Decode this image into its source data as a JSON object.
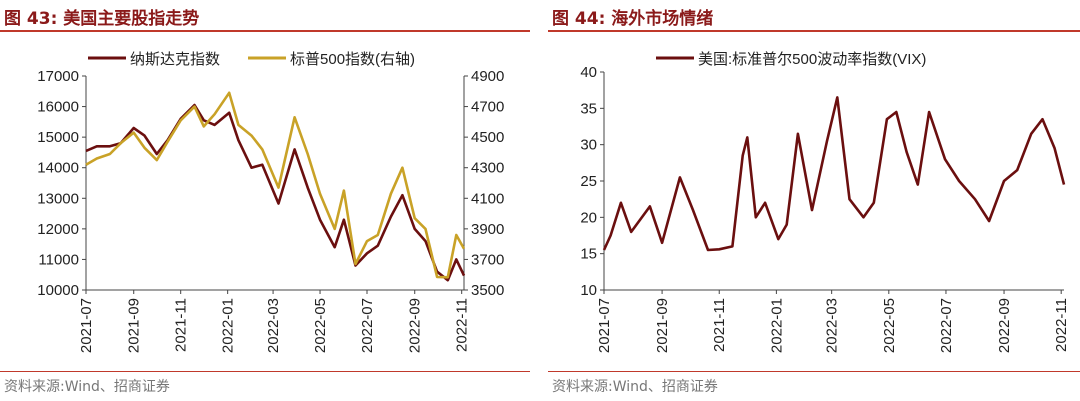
{
  "charts": [
    {
      "figure_title": "图 43:  美国主要股指走势",
      "source": "资料来源:Wind、招商证券",
      "chart_data": {
        "type": "line",
        "title": "",
        "x_ticks": [
          "2021-07",
          "2021-09",
          "2021-11",
          "2022-01",
          "2022-03",
          "2022-05",
          "2022-07",
          "2022-09",
          "2022-11"
        ],
        "x_range": [
          "2021-07-01",
          "2022-11-04"
        ],
        "y_left_ticks": [
          "10000",
          "11000",
          "12000",
          "13000",
          "14000",
          "15000",
          "16000",
          "17000"
        ],
        "y_left_range": [
          10000,
          17000
        ],
        "y_right_ticks": [
          "3500",
          "3700",
          "3900",
          "4100",
          "4300",
          "4500",
          "4700",
          "4900"
        ],
        "y_right_range": [
          3500,
          4900
        ],
        "legend_position": "top",
        "series": [
          {
            "name": "纳斯达克指数",
            "axis": "left",
            "color": "#6b0f0f",
            "x": [
              "2021-07-01",
              "2021-07-15",
              "2021-08-01",
              "2021-08-15",
              "2021-09-01",
              "2021-09-15",
              "2021-10-01",
              "2021-10-15",
              "2021-11-01",
              "2021-11-19",
              "2021-12-01",
              "2021-12-15",
              "2022-01-03",
              "2022-01-15",
              "2022-02-01",
              "2022-02-15",
              "2022-03-08",
              "2022-03-29",
              "2022-04-15",
              "2022-05-01",
              "2022-05-20",
              "2022-06-01",
              "2022-06-16",
              "2022-07-01",
              "2022-07-15",
              "2022-08-01",
              "2022-08-16",
              "2022-09-01",
              "2022-09-15",
              "2022-09-30",
              "2022-10-14",
              "2022-10-25",
              "2022-11-04"
            ],
            "y": [
              14550,
              14700,
              14700,
              14800,
              15300,
              15050,
              14450,
              14900,
              15600,
              16050,
              15550,
              15400,
              15800,
              14900,
              14000,
              14100,
              12830,
              14600,
              13350,
              12300,
              11400,
              12300,
              10800,
              11200,
              11450,
              12400,
              13100,
              12000,
              11600,
              10600,
              10320,
              11000,
              10470
            ]
          },
          {
            "name": "标普500指数(右轴)",
            "axis": "right",
            "color": "#c9a227",
            "x": [
              "2021-07-01",
              "2021-07-15",
              "2021-08-01",
              "2021-08-15",
              "2021-09-01",
              "2021-09-15",
              "2021-10-01",
              "2021-10-15",
              "2021-11-01",
              "2021-11-19",
              "2021-12-01",
              "2021-12-15",
              "2022-01-03",
              "2022-01-15",
              "2022-02-01",
              "2022-02-15",
              "2022-03-08",
              "2022-03-29",
              "2022-04-15",
              "2022-05-01",
              "2022-05-20",
              "2022-06-01",
              "2022-06-16",
              "2022-07-01",
              "2022-07-15",
              "2022-08-01",
              "2022-08-16",
              "2022-09-01",
              "2022-09-15",
              "2022-09-30",
              "2022-10-14",
              "2022-10-25",
              "2022-11-04"
            ],
            "y": [
              4320,
              4360,
              4390,
              4460,
              4530,
              4430,
              4350,
              4470,
              4610,
              4700,
              4570,
              4650,
              4790,
              4580,
              4510,
              4420,
              4170,
              4630,
              4390,
              4130,
              3900,
              4150,
              3670,
              3820,
              3860,
              4130,
              4300,
              3970,
              3900,
              3585,
              3583,
              3860,
              3770
            ]
          }
        ]
      }
    },
    {
      "figure_title": "图 44:  海外市场情绪",
      "source": "资料来源:Wind、招商证券",
      "chart_data": {
        "type": "line",
        "title": "",
        "x_ticks": [
          "2021-07",
          "2021-09",
          "2021-11",
          "2022-01",
          "2022-03",
          "2022-05",
          "2022-07",
          "2022-09",
          "2022-11"
        ],
        "x_range": [
          "2021-07-01",
          "2022-11-04"
        ],
        "y_left_ticks": [
          "10",
          "15",
          "20",
          "25",
          "30",
          "35",
          "40"
        ],
        "y_left_range": [
          10,
          40
        ],
        "legend_position": "top",
        "series": [
          {
            "name": "美国:标准普尔500波动率指数(VIX)",
            "axis": "left",
            "color": "#6b0f0f",
            "x": [
              "2021-07-01",
              "2021-07-08",
              "2021-07-19",
              "2021-07-30",
              "2021-08-19",
              "2021-09-01",
              "2021-09-20",
              "2021-10-04",
              "2021-10-20",
              "2021-11-01",
              "2021-11-15",
              "2021-11-26",
              "2021-12-01",
              "2021-12-10",
              "2021-12-20",
              "2022-01-03",
              "2022-01-12",
              "2022-01-24",
              "2022-02-08",
              "2022-02-24",
              "2022-03-07",
              "2022-03-20",
              "2022-04-04",
              "2022-04-15",
              "2022-04-29",
              "2022-05-09",
              "2022-05-20",
              "2022-06-01",
              "2022-06-13",
              "2022-06-30",
              "2022-07-15",
              "2022-08-01",
              "2022-08-16",
              "2022-09-01",
              "2022-09-15",
              "2022-09-30",
              "2022-10-12",
              "2022-10-25",
              "2022-11-04"
            ],
            "y": [
              15.5,
              17.5,
              22.0,
              18.0,
              21.5,
              16.5,
              25.5,
              21.0,
              15.5,
              15.6,
              16.0,
              28.5,
              31.0,
              20.0,
              22.0,
              17.0,
              19.0,
              31.5,
              21.0,
              30.5,
              36.5,
              22.5,
              20.0,
              22.0,
              33.5,
              34.5,
              29.0,
              24.5,
              34.5,
              28.0,
              25.0,
              22.5,
              19.5,
              25.0,
              26.5,
              31.5,
              33.5,
              29.5,
              24.5
            ]
          }
        ]
      }
    }
  ]
}
